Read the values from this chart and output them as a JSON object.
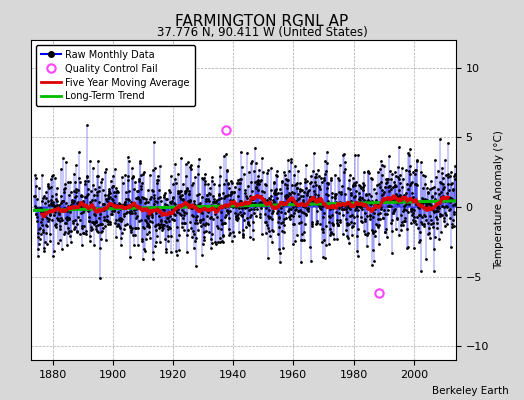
{
  "title": "FARMINGTON RGNL AP",
  "subtitle": "37.776 N, 90.411 W (United States)",
  "ylabel": "Temperature Anomaly (°C)",
  "credit": "Berkeley Earth",
  "xlim": [
    1873,
    2014
  ],
  "ylim": [
    -11,
    12
  ],
  "yticks": [
    -10,
    -5,
    0,
    5,
    10
  ],
  "xticks": [
    1880,
    1900,
    1920,
    1940,
    1960,
    1980,
    2000
  ],
  "start_year": 1874,
  "end_year": 2013,
  "fig_bg_color": "#d8d8d8",
  "plot_bg_color": "#ffffff",
  "line_color": "#0000ee",
  "ma_color": "#dd0000",
  "trend_color": "#00bb00",
  "qc_color": "#ff44ff",
  "seed": 42,
  "qc_points": [
    [
      1937.5,
      5.5
    ],
    [
      1988.5,
      -6.2
    ]
  ],
  "figsize": [
    5.24,
    4.0
  ],
  "dpi": 100
}
